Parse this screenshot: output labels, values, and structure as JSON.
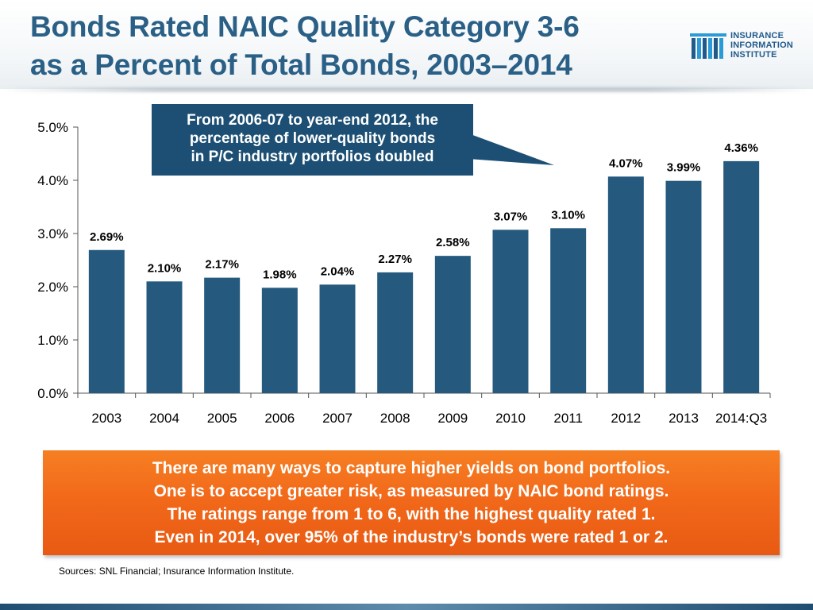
{
  "header": {
    "title_lines": [
      "Bonds Rated NAIC Quality Category 3-6",
      "as a Percent of Total Bonds, 2003–2014"
    ],
    "logo": {
      "icon": "iii-logo-icon",
      "lines": [
        "INSURANCE",
        "INFORMATION",
        "INSTITUTE"
      ]
    }
  },
  "callout": {
    "lines": [
      "From 2006-07 to year-end 2012, the",
      "percentage of lower-quality bonds",
      "in P/C industry portfolios doubled"
    ]
  },
  "chart_data": {
    "type": "bar",
    "title": "Bonds Rated NAIC Quality Category 3-6 as a Percent of Total Bonds, 2003–2014",
    "categories": [
      "2003",
      "2004",
      "2005",
      "2006",
      "2007",
      "2008",
      "2009",
      "2010",
      "2011",
      "2012",
      "2013",
      "2014:Q3"
    ],
    "values": [
      2.69,
      2.1,
      2.17,
      1.98,
      2.04,
      2.27,
      2.58,
      3.07,
      3.1,
      4.07,
      3.99,
      4.36
    ],
    "data_labels": [
      "2.69%",
      "2.10%",
      "2.17%",
      "1.98%",
      "2.04%",
      "2.27%",
      "2.58%",
      "3.07%",
      "3.10%",
      "4.07%",
      "3.99%",
      "4.36%"
    ],
    "ylim": [
      0,
      5
    ],
    "yticks": [
      0,
      1,
      2,
      3,
      4,
      5
    ],
    "ytick_labels": [
      "0.0%",
      "1.0%",
      "2.0%",
      "3.0%",
      "4.0%",
      "5.0%"
    ],
    "xlabel": "",
    "ylabel": "",
    "grid": false,
    "legend": "none",
    "bar_color": "#255a7e"
  },
  "note": {
    "lines": [
      "There are many ways to capture higher yields on bond portfolios.",
      "One is to accept greater risk, as measured by NAIC bond ratings.",
      "The ratings range from 1 to 6, with the highest quality rated 1.",
      "Even in 2014, over 95% of the industry’s bonds were rated 1 or 2."
    ]
  },
  "sources": "Sources: SNL Financial; Insurance Information Institute.",
  "colors": {
    "title": "#2a5f86",
    "callout_bg": "#1c4f73",
    "note_bg": "#f2691a",
    "bar": "#255a7e"
  }
}
